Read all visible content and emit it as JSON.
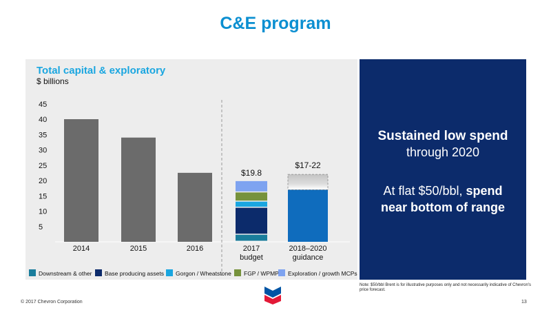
{
  "title": "C&E program",
  "chart_data": {
    "type": "bar",
    "title": "Total capital & exploratory",
    "ylabel": "$ billions",
    "ylim": [
      0,
      45
    ],
    "yticks": [
      5,
      10,
      15,
      20,
      25,
      30,
      35,
      40,
      45
    ],
    "grid": false,
    "legend_position": "bottom",
    "historical": [
      {
        "category": "2014",
        "value": 40
      },
      {
        "category": "2015",
        "value": 34
      },
      {
        "category": "2016",
        "value": 22.5
      }
    ],
    "budget": {
      "category_line1": "2017",
      "category_line2": "budget",
      "total_label": "$19.8",
      "segments": [
        {
          "name": "Downstream & other",
          "value": 2.3
        },
        {
          "name": "Base producing assets",
          "value": 8.8
        },
        {
          "name": "Gorgon / Wheatstone",
          "value": 2.0
        },
        {
          "name": "FGP / WPMP",
          "value": 3.0
        },
        {
          "name": "Exploration / growth MCPs",
          "value": 3.7
        }
      ]
    },
    "guidance": {
      "category_line1": "2018–2020",
      "category_line2": "guidance",
      "range_label": "$17-22",
      "low": 17,
      "high": 22
    },
    "legend": [
      {
        "name": "Downstream & other",
        "color": "#1a7d9c"
      },
      {
        "name": "Base producing assets",
        "color": "#0c2b6b"
      },
      {
        "name": "Gorgon / Wheatstone",
        "color": "#1aa6e0"
      },
      {
        "name": "FGP / WPMP",
        "color": "#76923c"
      },
      {
        "name": "Exploration / growth MCPs",
        "color": "#7ea3f0"
      }
    ]
  },
  "colors": {
    "historical_bar": "#6b6b6b",
    "guidance_bar": "#0f6cbd",
    "title": "#0b8fd1",
    "callout_bg": "#0c2b6b"
  },
  "callout": {
    "line1": "Sustained low spend",
    "line2": "through 2020",
    "line3_normal": "At flat $50/bbl, ",
    "line3_bold": "spend",
    "line4": "near bottom of range"
  },
  "note": "Note: $50/bbl Brent is for illustrative purposes only and not necessarily indicative of Chevron's price forecast.",
  "footer": {
    "copyright": "© 2017 Chevron Corporation",
    "page": "13"
  }
}
